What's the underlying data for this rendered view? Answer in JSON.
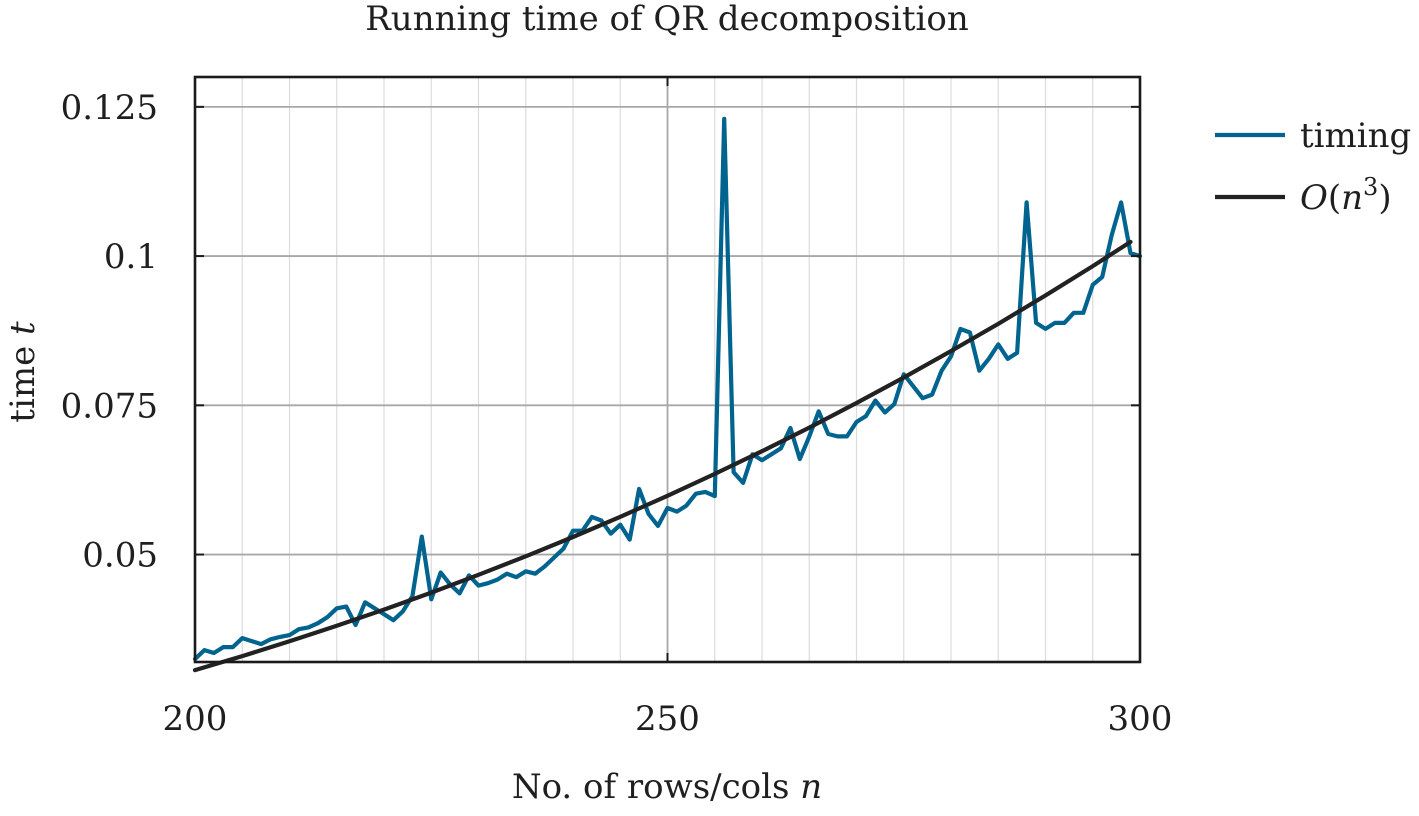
{
  "chart_data": {
    "type": "line",
    "title": "Running time of QR decomposition",
    "xlabel": "No. of rows/cols n",
    "ylabel": "time t",
    "xlim": [
      200,
      300
    ],
    "ylim": [
      0.032,
      0.13
    ],
    "x_ticks": [
      200,
      250,
      300
    ],
    "x_tick_labels": [
      "200",
      "250",
      "300"
    ],
    "y_ticks": [
      0.05,
      0.075,
      0.1,
      0.125
    ],
    "y_tick_labels": [
      "0.05",
      "0.075",
      "0.1",
      "0.125"
    ],
    "grid": true,
    "legend_position": "outside-right-top",
    "series": [
      {
        "name": "timing",
        "color": "#00648f",
        "x": [
          200,
          201,
          202,
          203,
          204,
          205,
          206,
          207,
          208,
          209,
          210,
          211,
          212,
          213,
          214,
          215,
          216,
          217,
          218,
          219,
          220,
          221,
          222,
          223,
          224,
          225,
          226,
          227,
          228,
          229,
          230,
          231,
          232,
          233,
          234,
          235,
          236,
          237,
          238,
          239,
          240,
          241,
          242,
          243,
          244,
          245,
          246,
          247,
          248,
          249,
          250,
          251,
          252,
          253,
          254,
          255,
          256,
          257,
          258,
          259,
          260,
          261,
          262,
          263,
          264,
          265,
          266,
          267,
          268,
          269,
          270,
          271,
          272,
          273,
          274,
          275,
          276,
          277,
          278,
          279,
          280,
          281,
          282,
          283,
          284,
          285,
          286,
          287,
          288,
          289,
          290,
          291,
          292,
          293,
          294,
          295,
          296,
          297,
          298,
          299,
          300
        ],
        "y": [
          0.0325,
          0.034,
          0.0335,
          0.0345,
          0.0345,
          0.036,
          0.0355,
          0.035,
          0.0358,
          0.0362,
          0.0365,
          0.0375,
          0.0378,
          0.0385,
          0.0395,
          0.041,
          0.0413,
          0.0382,
          0.042,
          0.041,
          0.04,
          0.039,
          0.0405,
          0.043,
          0.053,
          0.0425,
          0.047,
          0.045,
          0.0435,
          0.0465,
          0.0448,
          0.0452,
          0.0458,
          0.0468,
          0.0462,
          0.0472,
          0.0468,
          0.048,
          0.0495,
          0.051,
          0.054,
          0.054,
          0.0563,
          0.0557,
          0.0535,
          0.055,
          0.0525,
          0.061,
          0.0568,
          0.0548,
          0.0578,
          0.0572,
          0.0582,
          0.0602,
          0.0605,
          0.0598,
          0.123,
          0.0638,
          0.062,
          0.0668,
          0.0658,
          0.0668,
          0.0678,
          0.0712,
          0.066,
          0.0698,
          0.074,
          0.0702,
          0.0698,
          0.0698,
          0.0722,
          0.0732,
          0.0758,
          0.0738,
          0.0752,
          0.0802,
          0.0782,
          0.0762,
          0.0768,
          0.0808,
          0.0832,
          0.0878,
          0.0872,
          0.0808,
          0.0828,
          0.0852,
          0.0828,
          0.0838,
          0.109,
          0.0888,
          0.0878,
          0.0888,
          0.0888,
          0.0905,
          0.0905,
          0.0952,
          0.0965,
          0.1035,
          0.109,
          0.1005,
          0.1
        ]
      },
      {
        "name": "O(n^3)",
        "color": "#222222",
        "formula_coefficient": 3.83e-09,
        "x": [
          200,
          205,
          210,
          215,
          220,
          225,
          230,
          235,
          240,
          245,
          250,
          255,
          260,
          265,
          270,
          275,
          280,
          285,
          290,
          295,
          299
        ]
      }
    ]
  }
}
